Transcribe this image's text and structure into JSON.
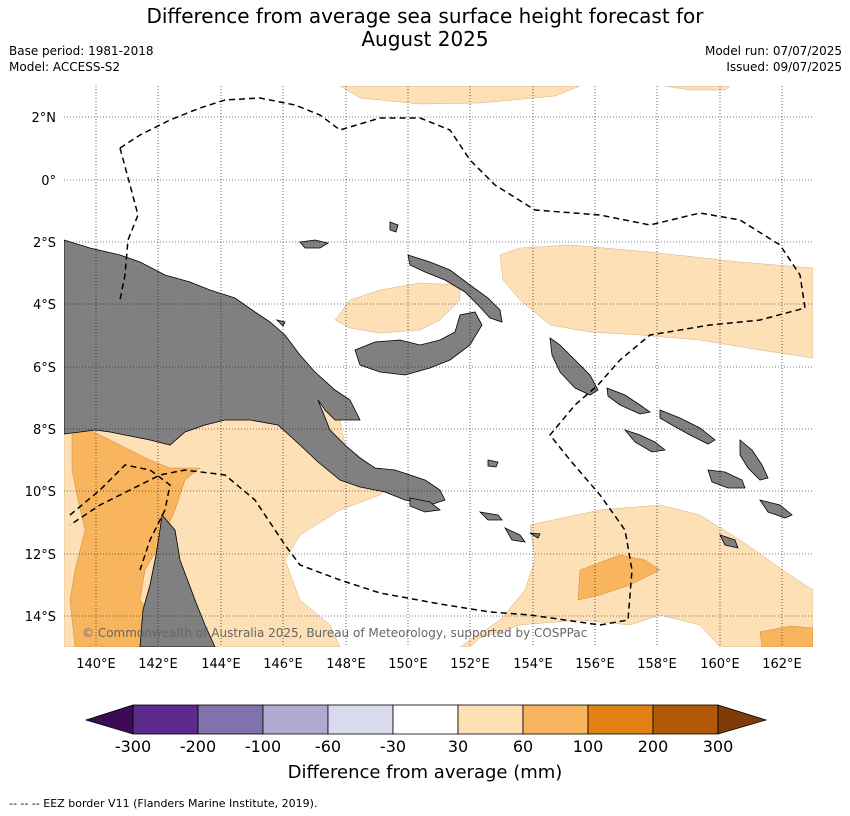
{
  "title_line1": "Difference from average sea surface height forecast for",
  "title_line2": "August 2025",
  "base_period": "Base period: 1981-2018",
  "model": "Model: ACCESS-S2",
  "model_run": "Model run: 07/07/2025",
  "issued": "Issued: 09/07/2025",
  "map": {
    "lon_labels": [
      "140°E",
      "142°E",
      "144°E",
      "146°E",
      "148°E",
      "150°E",
      "152°E",
      "154°E",
      "156°E",
      "158°E",
      "160°E",
      "162°E"
    ],
    "lat_labels": [
      "2°N",
      "0°",
      "2°S",
      "4°S",
      "6°S",
      "8°S",
      "10°S",
      "12°S",
      "14°S"
    ],
    "copyright": "© Commonwealth of Australia 2025, Bureau of Meteorology, supported by COSPPac",
    "colors": {
      "land": "#808080",
      "fill_30_60": "#fde0b5",
      "fill_60_100": "#f9b55e",
      "ocean": "#ffffff"
    }
  },
  "colorbar": {
    "ticks": [
      "-300",
      "-200",
      "-100",
      "-60",
      "-30",
      "30",
      "60",
      "100",
      "200",
      "300"
    ],
    "colors": [
      "#3d0a55",
      "#5b2a8c",
      "#8072ae",
      "#b0a9d2",
      "#d9dbec",
      "#ffffff",
      "#fde0b5",
      "#f9b55e",
      "#e2810f",
      "#b35806",
      "#7f3b08"
    ],
    "title": "Difference from average (mm)"
  },
  "footer": "--  --  -- EEZ border V11 (Flanders Marine Institute, 2019)."
}
